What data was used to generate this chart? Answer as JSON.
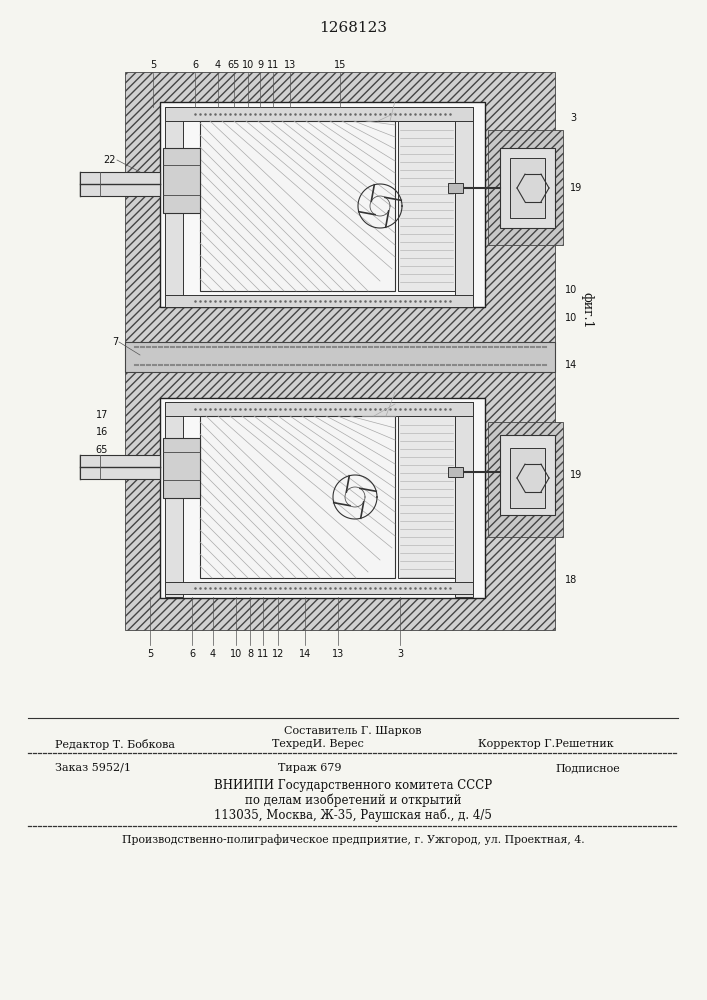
{
  "patent_number": "1268123",
  "fig_label": "фиг.1",
  "bg_color": "#f5f5f0",
  "line_color": "#1a1a1a",
  "hatch_color": "#333333",
  "header_line1_left": "Редактор Т. Бобкова",
  "header_line1_center": "ТехредИ. Верес",
  "header_line1_right": "Корректор Г.Решетник",
  "header_line0_center": "Составитель Г. Шарков",
  "row2_left": "Заказ 5952/1",
  "row2_center": "Тираж 679",
  "row2_right": "Подписное",
  "vniip_line1": "ВНИИПИ Государственного комитета СССР",
  "vniip_line2": "по делам изобретений и открытий",
  "vniip_line3": "113035, Москва, Ж-35, Раушская наб., д. 4/5",
  "bottom_line": "Производственно-полиграфическое предприятие, г. Ужгород, ул. Проектная, 4."
}
